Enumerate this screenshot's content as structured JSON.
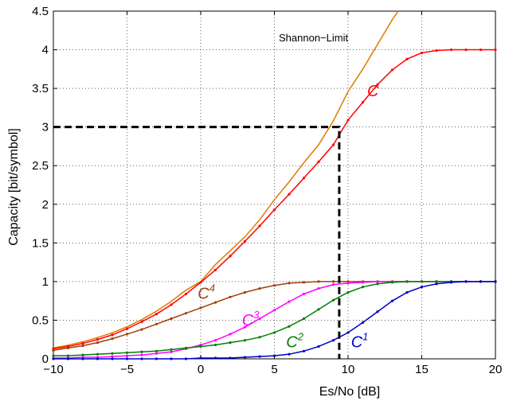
{
  "chart_data": {
    "type": "line",
    "xlabel": "Es/No [dB]",
    "ylabel": "Capacity [bit/symbol]",
    "xlim": [
      -10,
      20
    ],
    "ylim": [
      0,
      4.5
    ],
    "xticks": [
      "−10",
      "−5",
      "0",
      "5",
      "10",
      "15",
      "20"
    ],
    "yticks": [
      "0",
      "0.5",
      "1",
      "1.5",
      "2",
      "2.5",
      "3",
      "3.5",
      "4",
      "4.5"
    ],
    "grid": true,
    "annotation": "Shannon−Limit",
    "reference_line": {
      "x": 9.4,
      "y": 3
    },
    "series": [
      {
        "label_base": "C",
        "label_sup": "",
        "color": "#ff0000",
        "label_pos": [
          11.3,
          3.4
        ],
        "x": [
          -10,
          -9,
          -8,
          -7,
          -6,
          -5,
          -4,
          -3,
          -2,
          -1,
          0,
          1,
          2,
          3,
          4,
          5,
          6,
          7,
          8,
          9,
          10,
          11,
          12,
          13,
          14,
          15,
          16,
          17,
          18,
          19,
          20
        ],
        "y": [
          0.13,
          0.16,
          0.2,
          0.25,
          0.31,
          0.39,
          0.48,
          0.58,
          0.7,
          0.84,
          0.99,
          1.15,
          1.33,
          1.52,
          1.72,
          1.93,
          2.13,
          2.34,
          2.55,
          2.77,
          3.09,
          3.32,
          3.55,
          3.74,
          3.88,
          3.96,
          3.99,
          4.0,
          4.0,
          4.0,
          4.0
        ]
      },
      {
        "label_base": "C",
        "label_sup": "4",
        "color": "#a0400a",
        "label_pos": [
          -0.2,
          0.78
        ],
        "x": [
          -10,
          -9,
          -8,
          -7,
          -6,
          -5,
          -4,
          -3,
          -2,
          -1,
          0,
          1,
          2,
          3,
          4,
          5,
          6,
          7,
          8,
          9,
          10,
          11,
          12,
          13,
          14,
          15,
          16,
          17,
          18,
          19,
          20
        ],
        "y": [
          0.11,
          0.14,
          0.17,
          0.21,
          0.26,
          0.32,
          0.38,
          0.45,
          0.52,
          0.59,
          0.66,
          0.73,
          0.8,
          0.86,
          0.91,
          0.95,
          0.98,
          0.99,
          1.0,
          1.0,
          1.0,
          1.0,
          1.0,
          1.0,
          1.0,
          1.0,
          1.0,
          1.0,
          1.0,
          1.0,
          1.0
        ]
      },
      {
        "label_base": "C",
        "label_sup": "3",
        "color": "#ff00ff",
        "label_pos": [
          2.8,
          0.43
        ],
        "x": [
          -10,
          -9,
          -8,
          -7,
          -6,
          -5,
          -4,
          -3,
          -2,
          -1,
          0,
          1,
          2,
          3,
          4,
          5,
          6,
          7,
          8,
          9,
          10,
          11,
          12,
          13,
          14,
          15,
          16,
          17,
          18,
          19,
          20
        ],
        "y": [
          0.01,
          0.01,
          0.02,
          0.02,
          0.03,
          0.04,
          0.05,
          0.07,
          0.09,
          0.13,
          0.18,
          0.24,
          0.32,
          0.41,
          0.52,
          0.63,
          0.74,
          0.84,
          0.91,
          0.96,
          0.98,
          0.99,
          1.0,
          1.0,
          1.0,
          1.0,
          1.0,
          1.0,
          1.0,
          1.0,
          1.0
        ]
      },
      {
        "label_base": "C",
        "label_sup": "2",
        "color": "#008000",
        "label_pos": [
          5.8,
          0.15
        ],
        "x": [
          -10,
          -9,
          -8,
          -7,
          -6,
          -5,
          -4,
          -3,
          -2,
          -1,
          0,
          1,
          2,
          3,
          4,
          5,
          6,
          7,
          8,
          9,
          10,
          11,
          12,
          13,
          14,
          15,
          16,
          17,
          18,
          19,
          20
        ],
        "y": [
          0.04,
          0.04,
          0.05,
          0.06,
          0.07,
          0.08,
          0.09,
          0.1,
          0.12,
          0.14,
          0.16,
          0.18,
          0.21,
          0.24,
          0.28,
          0.34,
          0.42,
          0.52,
          0.64,
          0.76,
          0.86,
          0.93,
          0.97,
          0.99,
          1.0,
          1.0,
          1.0,
          1.0,
          1.0,
          1.0,
          1.0
        ]
      },
      {
        "label_base": "C",
        "label_sup": "1",
        "color": "#0000cc",
        "label_pos": [
          10.2,
          0.15
        ],
        "x": [
          -10,
          -9,
          -8,
          -7,
          -6,
          -5,
          -4,
          -3,
          -2,
          -1,
          0,
          1,
          2,
          3,
          4,
          5,
          6,
          7,
          8,
          9,
          10,
          11,
          12,
          13,
          14,
          15,
          16,
          17,
          18,
          19,
          20
        ],
        "y": [
          0.0,
          0.0,
          0.0,
          0.0,
          0.0,
          0.0,
          0.0,
          0.0,
          0.0,
          0.0,
          0.01,
          0.01,
          0.01,
          0.02,
          0.03,
          0.04,
          0.06,
          0.1,
          0.16,
          0.24,
          0.34,
          0.47,
          0.61,
          0.75,
          0.86,
          0.93,
          0.97,
          0.99,
          1.0,
          1.0,
          1.0
        ]
      }
    ],
    "shannon": {
      "color": "#e07a00",
      "points": [
        [
          -10,
          0.142
        ],
        [
          -9,
          0.177
        ],
        [
          -8,
          0.221
        ],
        [
          -7,
          0.274
        ],
        [
          -6,
          0.338
        ],
        [
          -5,
          0.415
        ],
        [
          -4,
          0.508
        ],
        [
          -3,
          0.617
        ],
        [
          -2,
          0.744
        ],
        [
          -1,
          0.889
        ],
        [
          0,
          1.0
        ],
        [
          1,
          1.22
        ],
        [
          2,
          1.4
        ],
        [
          3,
          1.58
        ],
        [
          4,
          1.8
        ],
        [
          5,
          2.06
        ],
        [
          6,
          2.29
        ],
        [
          7,
          2.54
        ],
        [
          8,
          2.77
        ],
        [
          9,
          3.08
        ],
        [
          10,
          3.46
        ],
        [
          11,
          3.75
        ],
        [
          12,
          4.07
        ],
        [
          13,
          4.39
        ],
        [
          13.4,
          4.5
        ]
      ]
    }
  }
}
